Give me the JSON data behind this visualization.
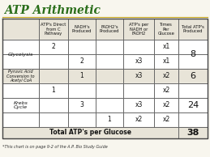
{
  "title": "ATP Arithmetic",
  "title_color": "#2a6e1a",
  "title_border_color": "#c8a820",
  "bg_color": "#f8f6ee",
  "table_bg": "#ffffff",
  "header_bg": "#e8e4d8",
  "alt_row_bg": "#e8e4d8",
  "col_headers": [
    "ATP's Direct\nfrom C\nPathway",
    "NADH's\nProduced",
    "FADH2's\nProduced",
    "ATP's per\nNADH or\nFADH2",
    "Times\nPer\nGlucose",
    "Total ATP's\nProduced"
  ],
  "total_label": "Total ATP's per Glucose",
  "total_value": "38",
  "footnote": "*This chart is on page 9-2 of the A.P. Bio Study Guide",
  "cell_data": [
    {
      "row": 0,
      "col": 0,
      "val": "2"
    },
    {
      "row": 0,
      "col": 4,
      "val": "x1"
    },
    {
      "row": 1,
      "col": 1,
      "val": "2"
    },
    {
      "row": 1,
      "col": 3,
      "val": "x3"
    },
    {
      "row": 1,
      "col": 4,
      "val": "x1"
    },
    {
      "row": 2,
      "col": 1,
      "val": "1"
    },
    {
      "row": 2,
      "col": 3,
      "val": "x3"
    },
    {
      "row": 2,
      "col": 4,
      "val": "x2"
    },
    {
      "row": 3,
      "col": 0,
      "val": "1"
    },
    {
      "row": 3,
      "col": 4,
      "val": "x2"
    },
    {
      "row": 4,
      "col": 1,
      "val": "3"
    },
    {
      "row": 4,
      "col": 3,
      "val": "x3"
    },
    {
      "row": 4,
      "col": 4,
      "val": "x2"
    },
    {
      "row": 5,
      "col": 2,
      "val": "1"
    },
    {
      "row": 5,
      "col": 3,
      "val": "x2"
    },
    {
      "row": 5,
      "col": 4,
      "val": "x2"
    }
  ],
  "row_groups": [
    {
      "label": "Glycolysis",
      "rows": [
        0,
        1
      ],
      "total": "8"
    },
    {
      "label": "Pyruvic Acid\nConversion to\nAcetyl CoA",
      "rows": [
        2
      ],
      "total": "6"
    },
    {
      "label": "Krebs\nCycle",
      "rows": [
        3,
        4,
        5
      ],
      "total": "24"
    }
  ]
}
